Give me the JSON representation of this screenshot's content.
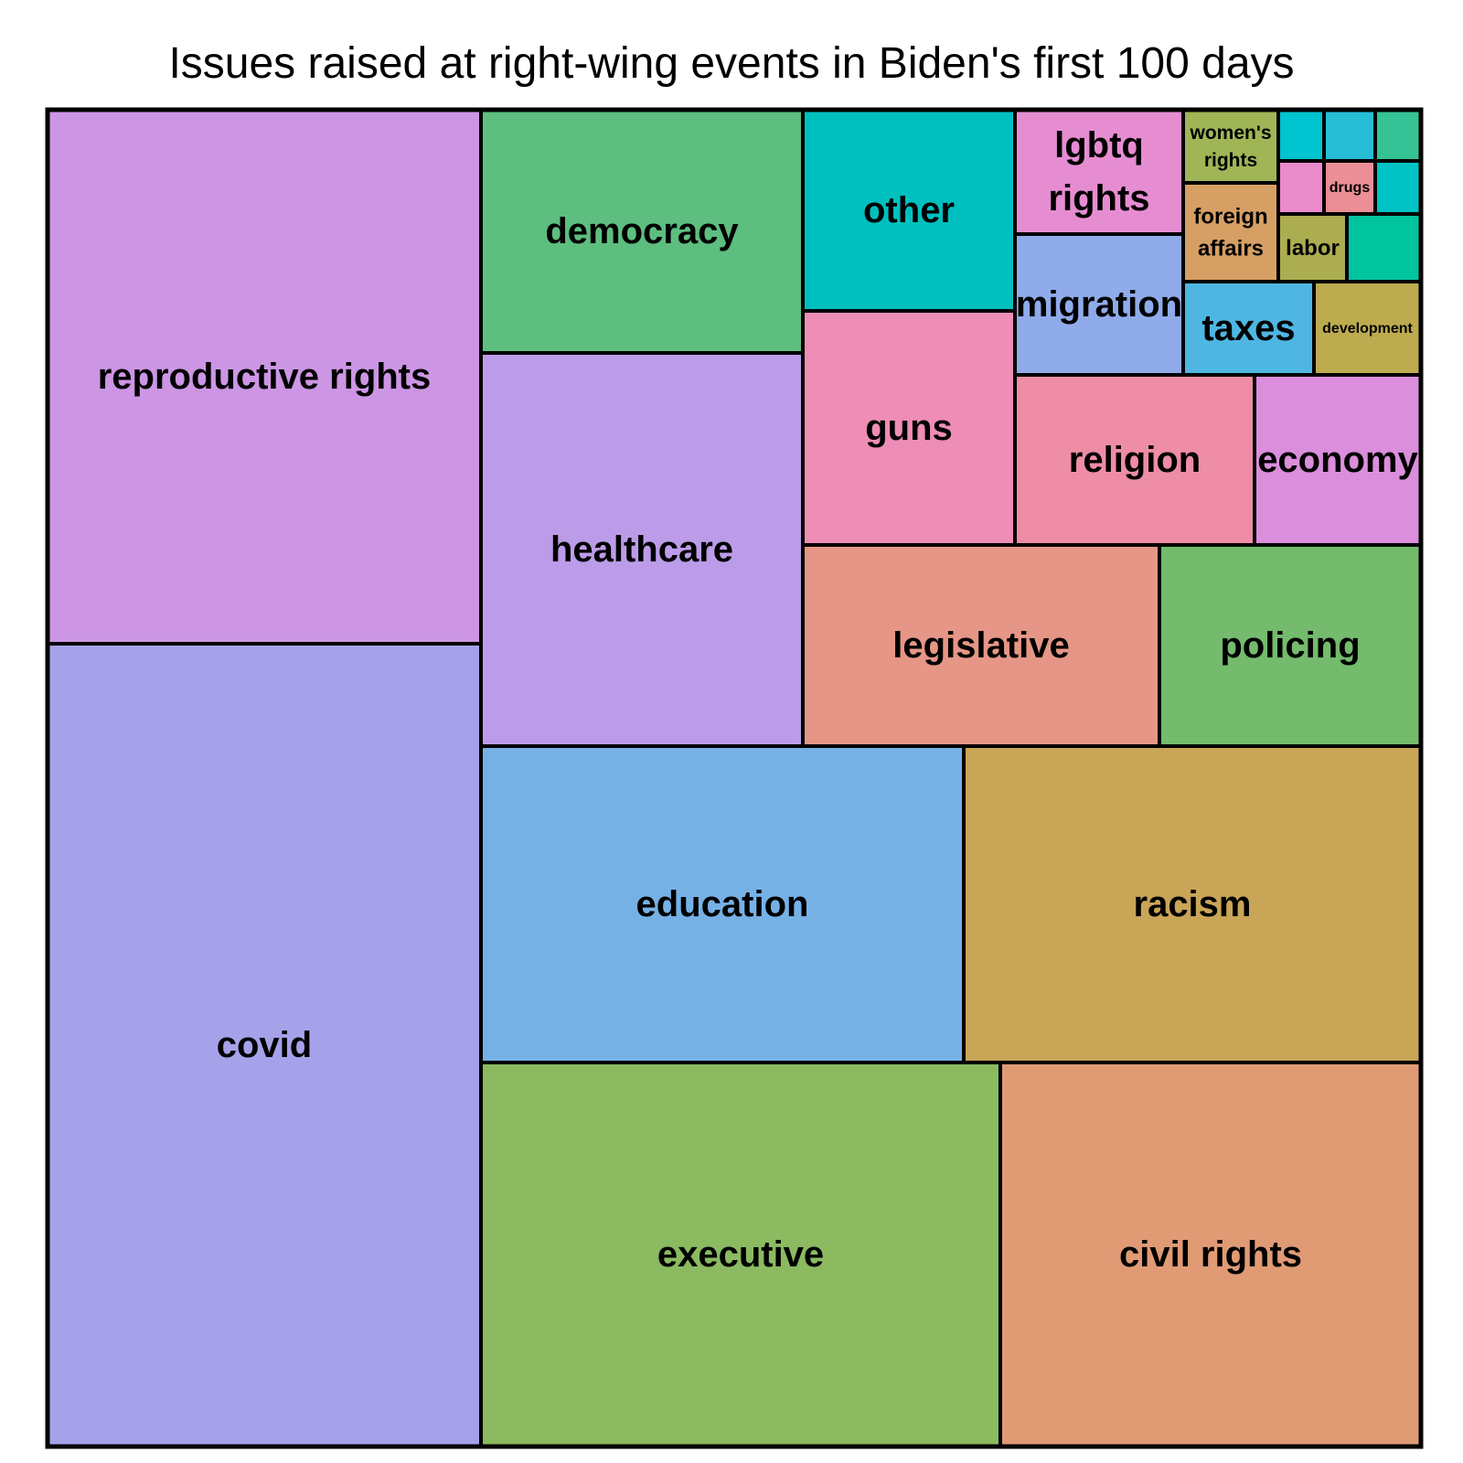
{
  "chart_data": {
    "type": "treemap",
    "title": "Issues raised at right-wing events in Biden's first 100 days",
    "tiles": [
      {
        "label": "covid",
        "value": 29.7,
        "color": "#A6A2EA"
      },
      {
        "label": "reproductive rights",
        "value": 19.9,
        "color": "#CC96E4"
      },
      {
        "label": "executive",
        "value": 11.3,
        "color": "#8BBA61"
      },
      {
        "label": "civil rights",
        "value": 9.1,
        "color": "#E09B75"
      },
      {
        "label": "education",
        "value": 8.2,
        "color": "#76B1E6"
      },
      {
        "label": "racism",
        "value": 7.8,
        "color": "#C9A557"
      },
      {
        "label": "healthcare",
        "value": 6.8,
        "color": "#BC9CE8"
      },
      {
        "label": "democracy",
        "value": 4.3,
        "color": "#5DBE7F"
      },
      {
        "label": "legislative",
        "value": 3.8,
        "color": "#E69686"
      },
      {
        "label": "policing",
        "value": 2.8,
        "color": "#74BB6D"
      },
      {
        "label": "guns",
        "value": 2.6,
        "color": "#EE8DB5"
      },
      {
        "label": "other",
        "value": 2.3,
        "color": "#00C0BF"
      },
      {
        "label": "religion",
        "value": 2.1,
        "color": "#EE8DA5"
      },
      {
        "label": "economy",
        "value": 1.6,
        "color": "#DA8EDB"
      },
      {
        "label": "migration",
        "value": 1.3,
        "color": "#8FABEA"
      },
      {
        "label": "lgbtq\nrights",
        "value": 1.0,
        "color": "#E68DD2"
      },
      {
        "label": "taxes",
        "value": 0.8,
        "color": "#4FB6E2"
      },
      {
        "label": "development",
        "value": 0.5,
        "color": "#BDAB50"
      },
      {
        "label": "foreign\naffairs",
        "value": 0.6,
        "color": "#D6A065"
      },
      {
        "label": "women's\nrights",
        "value": 0.4,
        "color": "#A0B556"
      },
      {
        "label": "labor",
        "value": 0.3,
        "color": "#ACAD50"
      },
      {
        "label": "",
        "value": 0.3,
        "color": "#00C49D"
      },
      {
        "label": "drugs",
        "value": 0.15,
        "color": "#EB8E96"
      },
      {
        "label": "",
        "value": 0.15,
        "color": "#EA8BCC"
      },
      {
        "label": "",
        "value": 0.15,
        "color": "#00C3C5"
      },
      {
        "label": "",
        "value": 0.15,
        "color": "#00C4CF"
      },
      {
        "label": "",
        "value": 0.15,
        "color": "#27BDD5"
      },
      {
        "label": "",
        "value": 0.15,
        "color": "#35C294"
      }
    ]
  }
}
